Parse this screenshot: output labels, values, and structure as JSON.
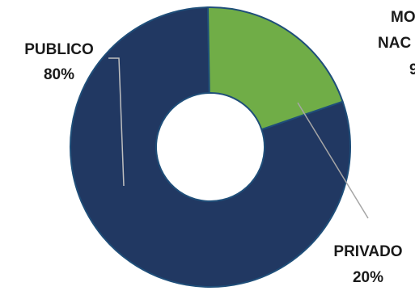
{
  "chart_data": {
    "type": "pie",
    "donut": true,
    "categories": [
      "PUBLICO",
      "PRIVADO"
    ],
    "values": [
      80,
      20
    ],
    "value_labels": [
      "80%",
      "20%"
    ],
    "colors": [
      "#213862",
      "#70AD47"
    ],
    "edge_color": "#1F4E79",
    "partial_label_lines": [
      "MO",
      "NAC",
      "9"
    ]
  }
}
